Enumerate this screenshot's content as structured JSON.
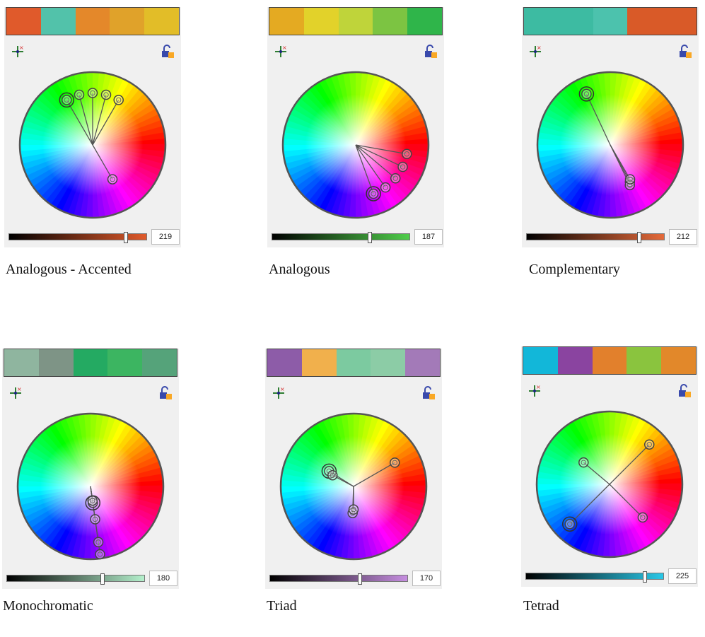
{
  "panels": [
    {
      "id": "analogous-accented",
      "caption": "Analogous - Accented",
      "value": "219",
      "level": 0.86,
      "swatches": [
        "#e05a2b",
        "#52c2aa",
        "#e4882a",
        "#e0a22a",
        "#e2bd28"
      ],
      "slider_end": "#e05a2b",
      "markers": [
        {
          "hue": 60,
          "r": 0.72
        },
        {
          "hue": 75,
          "r": 0.72
        },
        {
          "hue": 90,
          "r": 0.72
        },
        {
          "hue": 105,
          "r": 0.72
        },
        {
          "hue": 120,
          "r": 0.72,
          "primary": true
        },
        {
          "hue": 300,
          "r": 0.55
        }
      ]
    },
    {
      "id": "analogous",
      "caption": "Analogous",
      "value": "187",
      "level": 0.72,
      "swatches": [
        "#e4aa22",
        "#e2d22a",
        "#bfd43a",
        "#7cc442",
        "#2fb54a"
      ],
      "slider_end": "#4fcd4a",
      "markers": [
        {
          "hue": 350,
          "r": 0.72
        },
        {
          "hue": 335,
          "r": 0.72
        },
        {
          "hue": 320,
          "r": 0.72
        },
        {
          "hue": 305,
          "r": 0.72
        },
        {
          "hue": 290,
          "r": 0.72,
          "primary": true
        }
      ]
    },
    {
      "id": "complementary",
      "caption": "Complementary",
      "value": "212",
      "level": 0.83,
      "swatches": [
        "#3dbba2",
        "#3dbba2",
        "#4cc2ad",
        "#d95a28",
        "#d95a28"
      ],
      "slider_end": "#e56a3a",
      "markers": [
        {
          "hue": 115,
          "r": 0.78,
          "primary": true
        },
        {
          "hue": 298,
          "r": 0.58
        },
        {
          "hue": 296,
          "r": 0.62
        },
        {
          "hue": 300,
          "r": 0.55
        }
      ]
    },
    {
      "id": "monochromatic",
      "caption": "Monochromatic",
      "value": "180",
      "level": 0.7,
      "swatches": [
        "#8fb59f",
        "#7e9486",
        "#24aa62",
        "#3cb561",
        "#55a37a"
      ],
      "slider_end": "#b4f0cc",
      "markers": [
        {
          "hue": 278,
          "r": 0.95
        },
        {
          "hue": 278,
          "r": 0.78
        },
        {
          "hue": 278,
          "r": 0.46
        },
        {
          "hue": 278,
          "r": 0.23,
          "primary": true
        },
        {
          "hue": 278,
          "r": 0.2
        }
      ]
    },
    {
      "id": "triad",
      "caption": "Triad",
      "value": "170",
      "level": 0.66,
      "swatches": [
        "#8d5ca8",
        "#f1b04c",
        "#7ccaa0",
        "#8ccca6",
        "#a37ab8"
      ],
      "slider_end": "#c68ee0",
      "markers": [
        {
          "hue": 30,
          "r": 0.66
        },
        {
          "hue": 148,
          "r": 0.4,
          "primary": true
        },
        {
          "hue": 152,
          "r": 0.33
        },
        {
          "hue": 268,
          "r": 0.37
        },
        {
          "hue": 270,
          "r": 0.32
        }
      ]
    },
    {
      "id": "tetrad",
      "caption": "Tetrad",
      "value": "225",
      "level": 0.88,
      "swatches": [
        "#12b7d9",
        "#8a44a0",
        "#e2802c",
        "#8ac43e",
        "#e2882a"
      ],
      "slider_end": "#2ac8e8",
      "markers": [
        {
          "hue": 45,
          "r": 0.78
        },
        {
          "hue": 140,
          "r": 0.47
        },
        {
          "hue": 225,
          "r": 0.78,
          "primary": true
        },
        {
          "hue": 315,
          "r": 0.65
        }
      ]
    }
  ]
}
